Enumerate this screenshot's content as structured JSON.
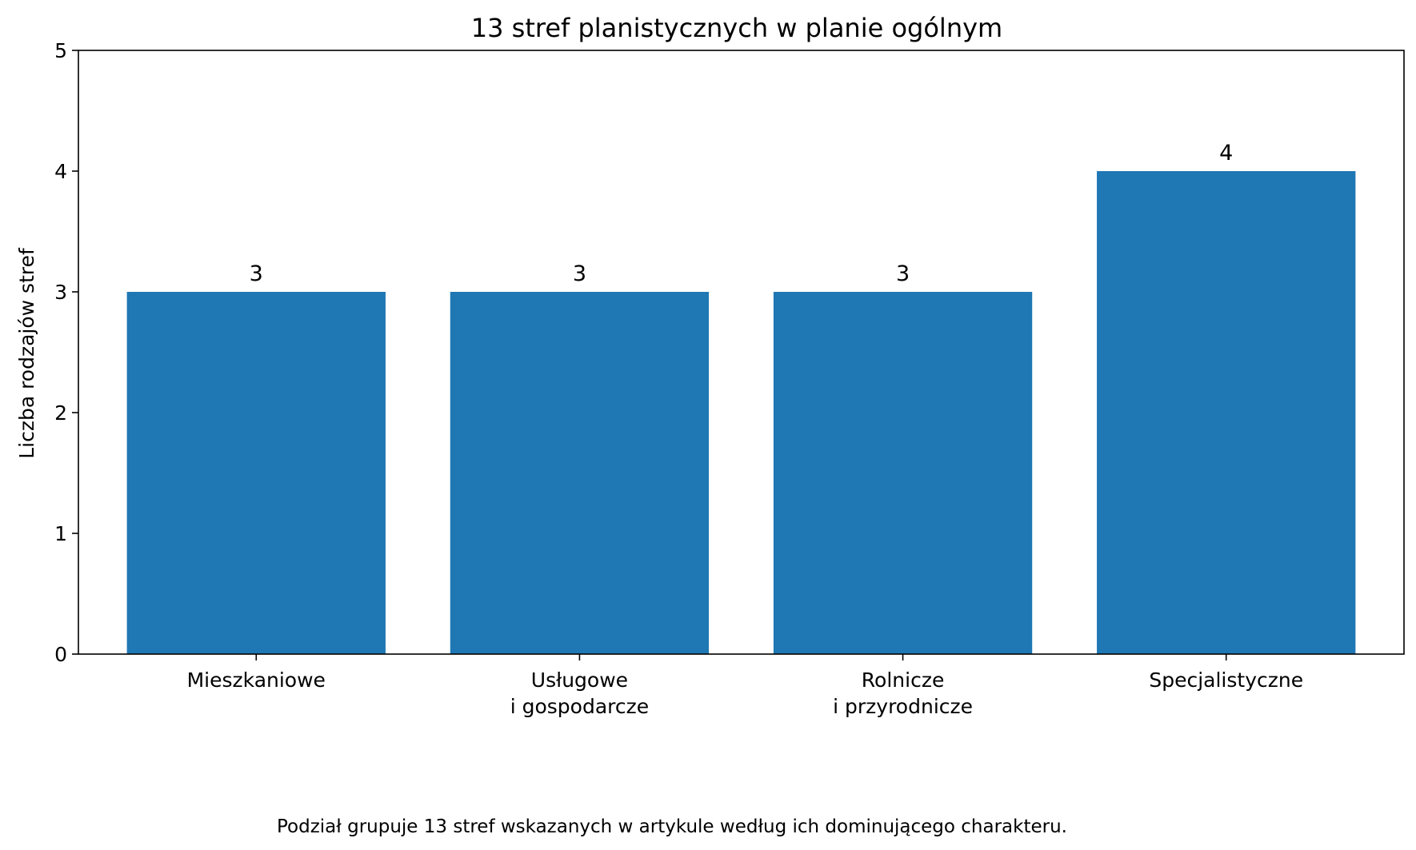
{
  "chart_data": {
    "type": "bar",
    "title": "13 stref planistycznych w planie ogólnym",
    "xlabel": "",
    "ylabel": "Liczba rodzajów stref",
    "categories": [
      [
        "Mieszkaniowe"
      ],
      [
        "Usługowe",
        "i gospodarcze"
      ],
      [
        "Rolnicze",
        "i przyrodnicze"
      ],
      [
        "Specjalistyczne"
      ]
    ],
    "values": [
      3,
      3,
      3,
      4
    ],
    "ylim": [
      0,
      5
    ],
    "yticks": [
      0,
      1,
      2,
      3,
      4,
      5
    ],
    "grid": false,
    "bar_color": "#1f77b4"
  },
  "footnote": "Podział grupuje 13 stref wskazanych w artykule według ich dominującego charakteru."
}
